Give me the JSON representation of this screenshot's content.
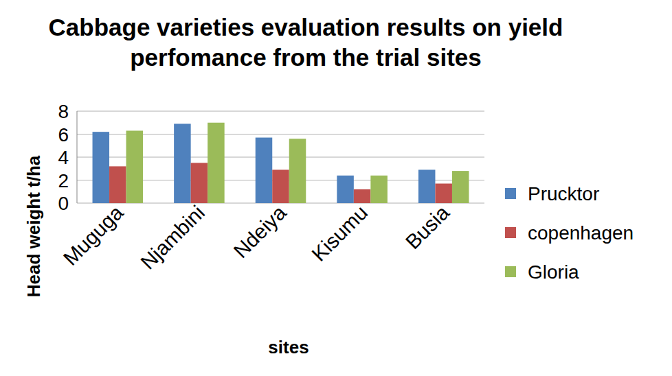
{
  "chart_data": {
    "type": "bar",
    "title": "Cabbage varieties evaluation results on yield perfomance from the trial sites",
    "x_label": "sites",
    "y_label": "Head weight t/ha",
    "categories": [
      "Muguga",
      "Njambini",
      "Ndeiya",
      "Kisumu",
      "Busia"
    ],
    "series": [
      {
        "name": "Prucktor",
        "color": "#4f81bd",
        "values": [
          6.2,
          6.9,
          5.7,
          2.4,
          2.9
        ]
      },
      {
        "name": "copenhagen",
        "color": "#c0504d",
        "values": [
          3.2,
          3.5,
          2.9,
          1.2,
          1.7
        ]
      },
      {
        "name": "Gloria",
        "color": "#9bbb59",
        "values": [
          6.3,
          7.0,
          5.6,
          2.4,
          2.8
        ]
      }
    ],
    "ylim": [
      0,
      8
    ],
    "yticks": [
      0,
      2,
      4,
      6,
      8
    ],
    "grid": true,
    "legend": "right"
  }
}
